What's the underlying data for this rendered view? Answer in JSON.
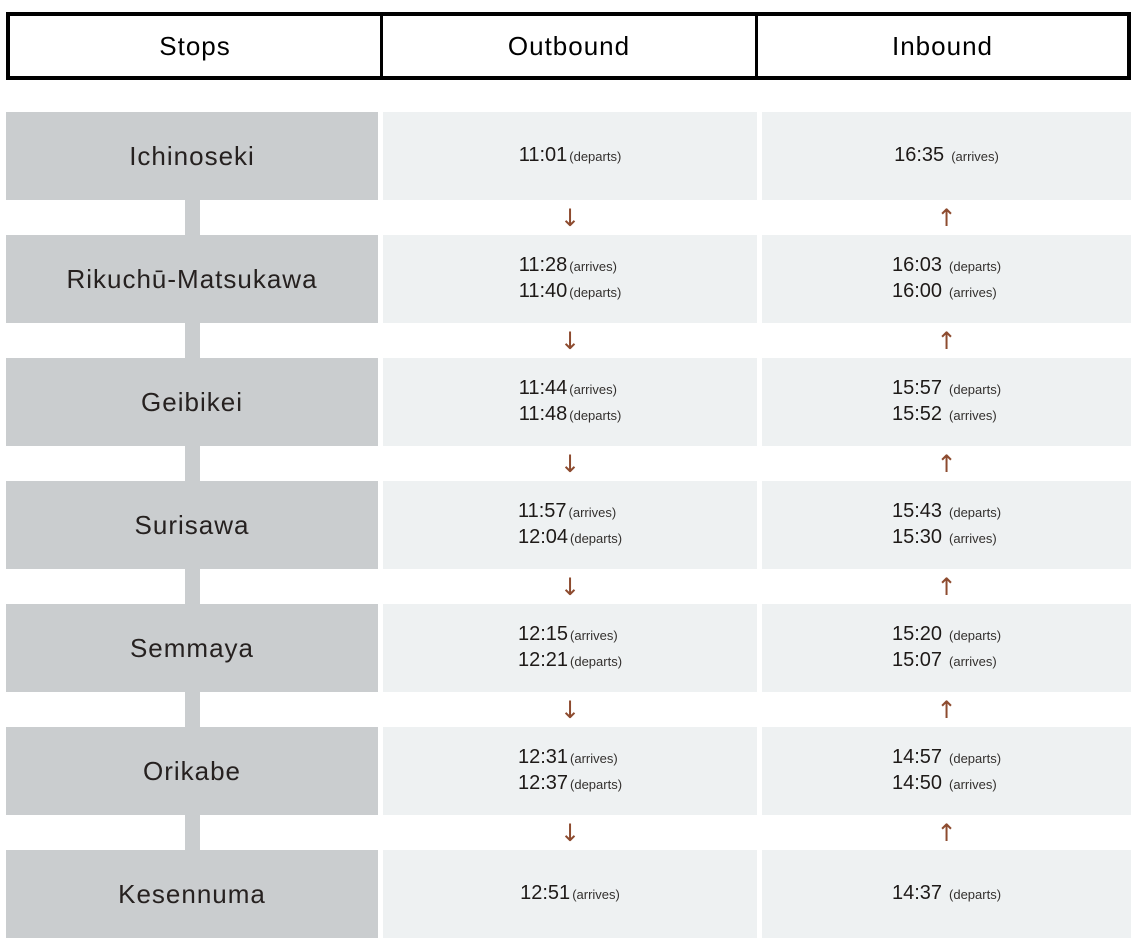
{
  "header": {
    "stops": "Stops",
    "outbound": "Outbound",
    "inbound": "Inbound"
  },
  "arrows": {
    "down": "↓",
    "up": "↑"
  },
  "colors": {
    "station_box": "#cacdcf",
    "time_cell": "#eef1f2",
    "arrow": "#8d4b2f",
    "header_border": "#000000"
  },
  "rows": [
    {
      "stop": "Ichinoseki",
      "outbound": [
        {
          "time": "11:01",
          "note": "(departs)"
        }
      ],
      "inbound": [
        {
          "time": "16:35",
          "note": "(arrives)"
        }
      ]
    },
    {
      "stop": "Rikuchū-Matsukawa",
      "outbound": [
        {
          "time": "11:28",
          "note": "(arrives)"
        },
        {
          "time": "11:40",
          "note": "(departs)"
        }
      ],
      "inbound": [
        {
          "time": "16:03",
          "note": "(departs)"
        },
        {
          "time": "16:00",
          "note": "(arrives)"
        }
      ]
    },
    {
      "stop": "Geibikei",
      "outbound": [
        {
          "time": "11:44",
          "note": "(arrives)"
        },
        {
          "time": "11:48",
          "note": "(departs)"
        }
      ],
      "inbound": [
        {
          "time": "15:57",
          "note": "(departs)"
        },
        {
          "time": "15:52",
          "note": "(arrives)"
        }
      ]
    },
    {
      "stop": "Surisawa",
      "outbound": [
        {
          "time": "11:57",
          "note": "(arrives)"
        },
        {
          "time": "12:04",
          "note": "(departs)"
        }
      ],
      "inbound": [
        {
          "time": "15:43",
          "note": "(departs)"
        },
        {
          "time": "15:30",
          "note": "(arrives)"
        }
      ]
    },
    {
      "stop": "Semmaya",
      "outbound": [
        {
          "time": "12:15",
          "note": "(arrives)"
        },
        {
          "time": "12:21",
          "note": "(departs)"
        }
      ],
      "inbound": [
        {
          "time": "15:20",
          "note": "(departs)"
        },
        {
          "time": "15:07",
          "note": "(arrives)"
        }
      ]
    },
    {
      "stop": "Orikabe",
      "outbound": [
        {
          "time": "12:31",
          "note": "(arrives)"
        },
        {
          "time": "12:37",
          "note": "(departs)"
        }
      ],
      "inbound": [
        {
          "time": "14:57",
          "note": "(departs)"
        },
        {
          "time": "14:50",
          "note": "(arrives)"
        }
      ]
    },
    {
      "stop": "Kesennuma",
      "outbound": [
        {
          "time": "12:51",
          "note": "(arrives)"
        }
      ],
      "inbound": [
        {
          "time": "14:37",
          "note": "(departs)"
        }
      ]
    }
  ]
}
